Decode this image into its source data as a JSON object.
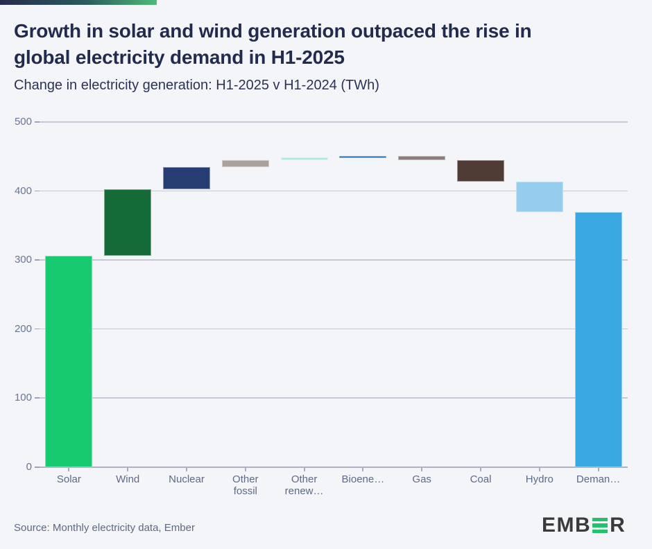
{
  "header": {
    "title_line1": "Growth in solar and wind generation outpaced the rise in",
    "title_line2": "global electricity demand in H1-2025",
    "subtitle": "Change in electricity generation: H1-2025 v H1-2024 (TWh)"
  },
  "chart_data": {
    "type": "bar",
    "subtype": "waterfall",
    "title": "Growth in solar and wind generation outpaced the rise in global electricity demand in H1-2025",
    "subtitle": "Change in electricity generation: H1-2025 v H1-2024 (TWh)",
    "unit": "TWh",
    "ylim": [
      0,
      500
    ],
    "y_ticks": [
      0,
      100,
      200,
      300,
      400,
      500
    ],
    "grid": "horizontal",
    "legend": "none",
    "categories": [
      "Solar",
      "Wind",
      "Nuclear",
      "Other fossil",
      "Other renew…",
      "Bioene…",
      "Gas",
      "Coal",
      "Hydro",
      "Deman…"
    ],
    "series": [
      {
        "label": "Solar",
        "label_lines": [
          "Solar"
        ],
        "change": 306,
        "from": 0,
        "to": 306,
        "color": "#17c96f"
      },
      {
        "label": "Wind",
        "label_lines": [
          "Wind"
        ],
        "change": 97,
        "from": 306,
        "to": 403,
        "color": "#156b38"
      },
      {
        "label": "Nuclear",
        "label_lines": [
          "Nuclear"
        ],
        "change": 32,
        "from": 403,
        "to": 435,
        "color": "#263d73"
      },
      {
        "label": "Other fossil",
        "label_lines": [
          "Other",
          "fossil"
        ],
        "change": 10,
        "from": 435,
        "to": 445,
        "color": "#aaa19d"
      },
      {
        "label": "Other renew…",
        "label_lines": [
          "Other",
          "renew…"
        ],
        "change": 4,
        "from": 445,
        "to": 449,
        "color": "#aee9e1"
      },
      {
        "label": "Bioene…",
        "label_lines": [
          "Bioene…"
        ],
        "change": 2,
        "from": 449,
        "to": 451,
        "color": "#2b6cb3"
      },
      {
        "label": "Gas",
        "label_lines": [
          "Gas"
        ],
        "change": -6,
        "from": 451,
        "to": 445,
        "color": "#8b7d79"
      },
      {
        "label": "Coal",
        "label_lines": [
          "Coal"
        ],
        "change": -31,
        "from": 445,
        "to": 414,
        "color": "#4e3c35"
      },
      {
        "label": "Hydro",
        "label_lines": [
          "Hydro"
        ],
        "change": -45,
        "from": 414,
        "to": 369,
        "color": "#96cced"
      },
      {
        "label": "Deman…",
        "label_lines": [
          "Deman…"
        ],
        "change": -369,
        "from": 369,
        "to": 0,
        "color": "#38a7e2"
      }
    ]
  },
  "footer": {
    "source": "Source: Monthly electricity data, Ember",
    "logo_pre": "EMB",
    "logo_post": "R"
  },
  "colors": {
    "background": "#f4f5f9",
    "title": "#222b4e",
    "gridline": "#c5c9d6",
    "axis_label": "#6b7490",
    "brand_gradient_from": "#252c4e",
    "brand_gradient_to": "#4cbc77",
    "logo_green": "#25c16f",
    "logo_dark": "#3a3a3a"
  }
}
